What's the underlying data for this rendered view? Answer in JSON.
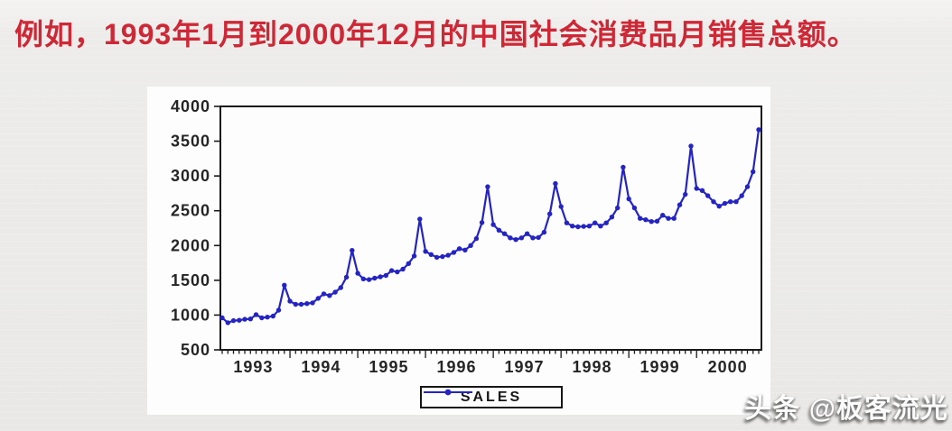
{
  "slide": {
    "title": "例如，1993年1月到2000年12月的中国社会消费品月销售总额。",
    "watermark": "头条 @板客流光"
  },
  "colors": {
    "background": "#ebeae8",
    "panel": "#fdfdfd",
    "title": "#ce2837",
    "line": "#2424c4",
    "axis": "#1a1a1a",
    "watermark": "#fbfbfb"
  },
  "chart_data": {
    "type": "line",
    "title": "",
    "xlabel": "",
    "ylabel": "",
    "grid": false,
    "x": {
      "frequency": "monthly",
      "start": "1993M01",
      "end": "2000M12",
      "tick_labels": [
        "1993",
        "1994",
        "1995",
        "1996",
        "1997",
        "1998",
        "1999",
        "2000"
      ]
    },
    "y": {
      "min": 500,
      "max": 4000,
      "step": 500,
      "ticks": [
        500,
        1000,
        1500,
        2000,
        2500,
        3000,
        3500,
        4000
      ]
    },
    "legend": {
      "label": "SALES",
      "position": "bottom-center"
    },
    "series": [
      {
        "name": "SALES",
        "color": "#2424c4",
        "values": [
          960,
          890,
          920,
          925,
          940,
          945,
          1005,
          960,
          970,
          985,
          1070,
          1430,
          1200,
          1155,
          1155,
          1165,
          1175,
          1240,
          1305,
          1280,
          1330,
          1395,
          1545,
          1930,
          1600,
          1520,
          1510,
          1530,
          1550,
          1570,
          1640,
          1620,
          1660,
          1740,
          1850,
          2380,
          1915,
          1870,
          1830,
          1840,
          1860,
          1900,
          1955,
          1935,
          2000,
          2100,
          2330,
          2845,
          2300,
          2220,
          2170,
          2110,
          2085,
          2110,
          2170,
          2110,
          2115,
          2190,
          2455,
          2890,
          2560,
          2325,
          2280,
          2270,
          2275,
          2280,
          2325,
          2280,
          2325,
          2410,
          2540,
          3125,
          2670,
          2540,
          2390,
          2370,
          2345,
          2350,
          2435,
          2390,
          2390,
          2585,
          2735,
          3430,
          2820,
          2790,
          2715,
          2630,
          2565,
          2605,
          2630,
          2630,
          2715,
          2845,
          3060,
          3665
        ]
      }
    ]
  }
}
